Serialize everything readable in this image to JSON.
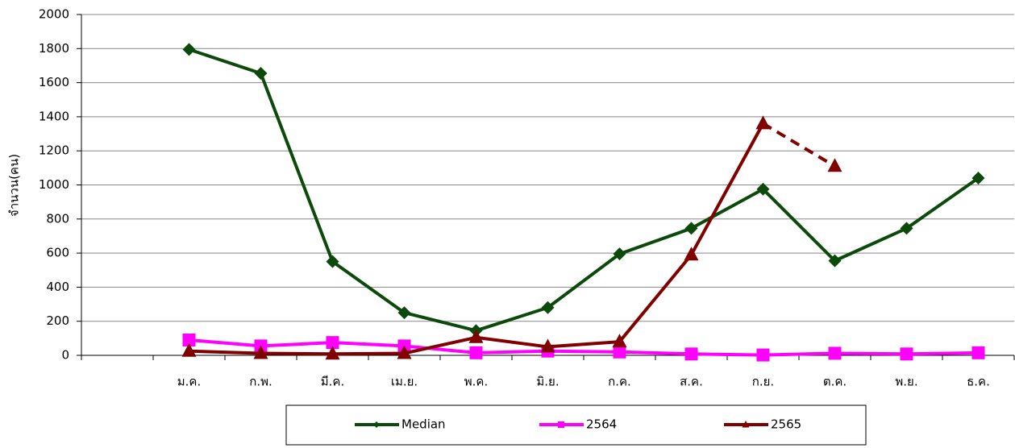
{
  "chart_data": {
    "type": "line",
    "y_label": "จำนวน(คน)",
    "categories": [
      null,
      "ม.ค.",
      "ก.พ.",
      "มี.ค.",
      "เม.ย.",
      "พ.ค.",
      "มิ.ย.",
      "ก.ค.",
      "ส.ค.",
      "ก.ย.",
      "ต.ค.",
      "พ.ย.",
      "ธ.ค."
    ],
    "series": [
      {
        "name": "Median",
        "color": "#0b4a0b",
        "marker": "diamond",
        "values": [
          null,
          1795,
          1655,
          550,
          250,
          145,
          280,
          595,
          745,
          975,
          555,
          745,
          1040
        ]
      },
      {
        "name": "2564",
        "color": "#ff00ff",
        "marker": "square",
        "values": [
          null,
          90,
          55,
          75,
          55,
          15,
          25,
          20,
          8,
          2,
          12,
          8,
          15
        ]
      },
      {
        "name": "2565",
        "color": "#800000",
        "marker": "triangle",
        "dashed_from_index": 9,
        "values": [
          null,
          25,
          12,
          8,
          12,
          105,
          50,
          80,
          590,
          1360,
          1110,
          null,
          null
        ]
      }
    ],
    "ylim": [
      0,
      2000
    ],
    "yticks": [
      0,
      200,
      400,
      600,
      800,
      1000,
      1200,
      1400,
      1600,
      1800,
      2000
    ],
    "grid": true,
    "legend": "bottom"
  }
}
